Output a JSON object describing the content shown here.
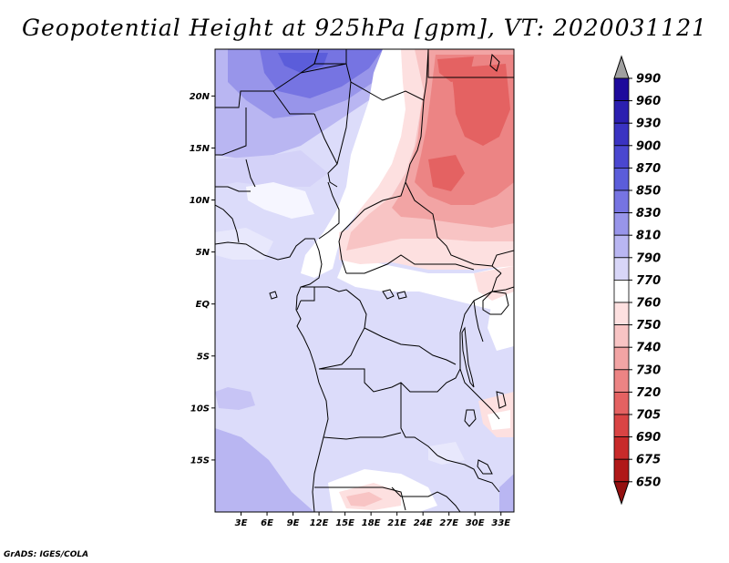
{
  "title": "Geopotential Height at 925hPa [gpm], VT: 2020031121",
  "credit": "GrADS: IGES/COLA",
  "map": {
    "lon_labels": [
      "3E",
      "6E",
      "9E",
      "12E",
      "15E",
      "18E",
      "21E",
      "24E",
      "27E",
      "30E",
      "33E"
    ],
    "lat_labels": [
      "20N",
      "15N",
      "10N",
      "5N",
      "EQ",
      "5S",
      "10S",
      "15S"
    ]
  },
  "colorbar": {
    "levels": [
      "990",
      "960",
      "930",
      "900",
      "870",
      "850",
      "830",
      "810",
      "790",
      "770",
      "760",
      "750",
      "740",
      "730",
      "720",
      "705",
      "690",
      "675",
      "650"
    ],
    "colors": [
      "#a0a0a0",
      "#1e0a9c",
      "#2b1fb0",
      "#3a33c2",
      "#4a47d0",
      "#5b5dda",
      "#7674e2",
      "#9895ea",
      "#b9b6f2",
      "#d8d6f8",
      "#ffffff",
      "#fde0e0",
      "#f8c4c4",
      "#f2a4a4",
      "#ec8484",
      "#e46262",
      "#d94444",
      "#c82a2a",
      "#b01818",
      "#941010"
    ]
  },
  "chart_data": {
    "type": "heatmap",
    "title": "Geopotential Height at 925hPa [gpm], VT: 2020031121",
    "variable": "Geopotential Height at 925hPa",
    "units": "gpm",
    "valid_time": "2020031121",
    "lon_range": [
      0,
      34.5
    ],
    "lat_range": [
      -20,
      24.5
    ],
    "x_ticks": [
      "3E",
      "6E",
      "9E",
      "12E",
      "15E",
      "18E",
      "21E",
      "24E",
      "27E",
      "30E",
      "33E"
    ],
    "y_ticks": [
      "20N",
      "15N",
      "10N",
      "5N",
      "EQ",
      "5S",
      "10S",
      "15S"
    ],
    "levels": [
      650,
      675,
      690,
      705,
      720,
      730,
      740,
      750,
      760,
      770,
      790,
      810,
      830,
      850,
      870,
      900,
      930,
      960,
      990
    ]
  }
}
